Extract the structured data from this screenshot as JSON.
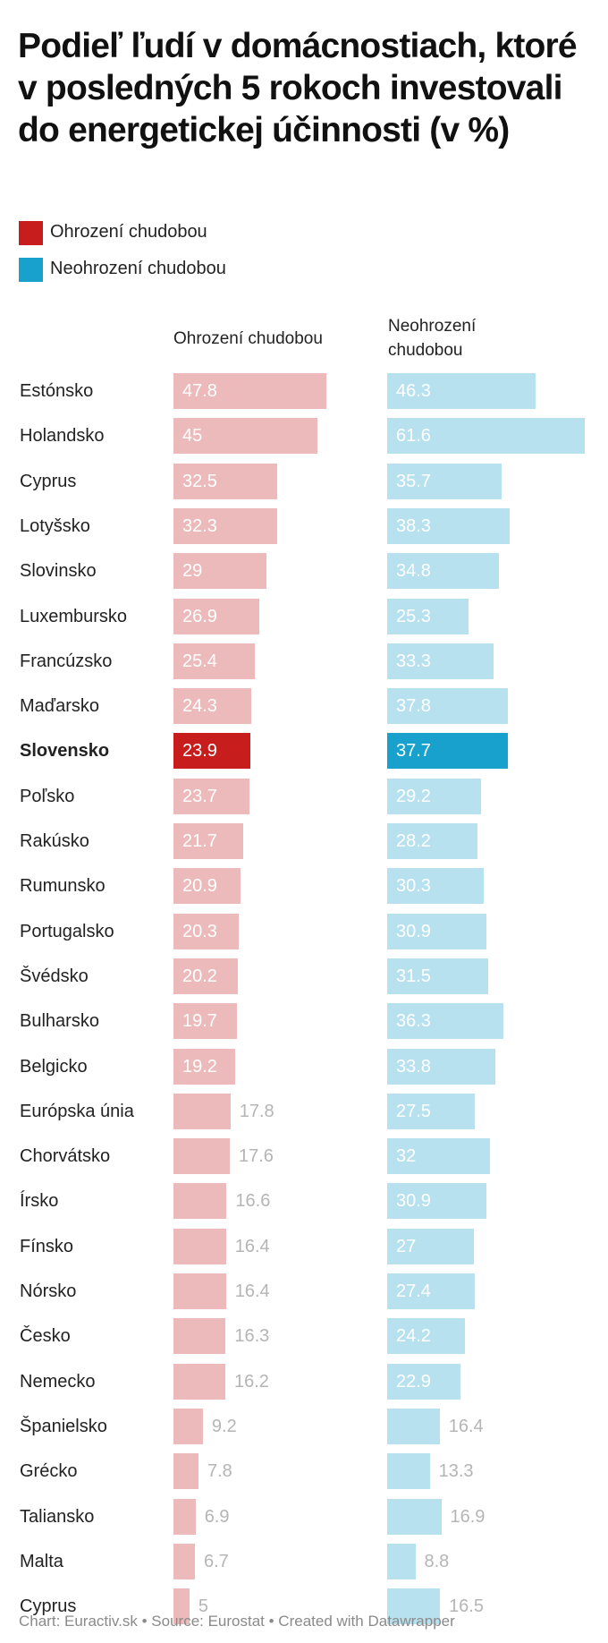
{
  "chart_data": {
    "type": "bar",
    "title": "Podieľ ľudí v domácnostiach, ktoré v posledných 5 rokoch investovali do energetickej účinnosti (v %)",
    "legend": {
      "placement": "top-left"
    },
    "colors": {
      "poverty": "#c71e1d",
      "poverty_light": "#ecbaba",
      "no_poverty": "#18a1cd",
      "no_poverty_light": "#b8e1ef",
      "outside_label": "#b5b5b5"
    },
    "highlight": "Slovensko",
    "categories": [
      "Estónsko",
      "Holandsko",
      "Cyprus",
      "Lotyšsko",
      "Slovinsko",
      "Luxembursko",
      "Francúzsko",
      "Maďarsko",
      "Slovensko",
      "Poľsko",
      "Rakúsko",
      "Rumunsko",
      "Portugalsko",
      "Švédsko",
      "Bulharsko",
      "Belgicko",
      "Európska únia",
      "Chorvátsko",
      "Írsko",
      "Fínsko",
      "Nórsko",
      "Česko",
      "Nemecko",
      "Španielsko",
      "Grécko",
      "Taliansko",
      "Malta",
      "Cyprus"
    ],
    "series": [
      {
        "name": "Ohrození chudobou",
        "values": [
          47.8,
          45,
          32.5,
          32.3,
          29,
          26.9,
          25.4,
          24.3,
          23.9,
          23.7,
          21.7,
          20.9,
          20.3,
          20.2,
          19.7,
          19.2,
          17.8,
          17.6,
          16.6,
          16.4,
          16.4,
          16.3,
          16.2,
          9.2,
          7.8,
          6.9,
          6.7,
          5
        ]
      },
      {
        "name": "Neohrození chudobou",
        "values": [
          46.3,
          61.6,
          35.7,
          38.3,
          34.8,
          25.3,
          33.3,
          37.8,
          37.7,
          29.2,
          28.2,
          30.3,
          30.9,
          31.5,
          36.3,
          33.8,
          27.5,
          32,
          30.9,
          27,
          27.4,
          24.2,
          22.9,
          16.4,
          13.3,
          16.9,
          8.8,
          16.5
        ]
      }
    ],
    "column_headers": [
      "Ohrození chudobou",
      "Neohrození chudobou"
    ],
    "xlim": [
      0,
      61.6
    ]
  },
  "legend_items": [
    "Ohrození chudobou",
    "Neohrození chudobou"
  ],
  "footer": "Chart: Euractiv.sk • Source: Eurostat • Created with Datawrapper"
}
